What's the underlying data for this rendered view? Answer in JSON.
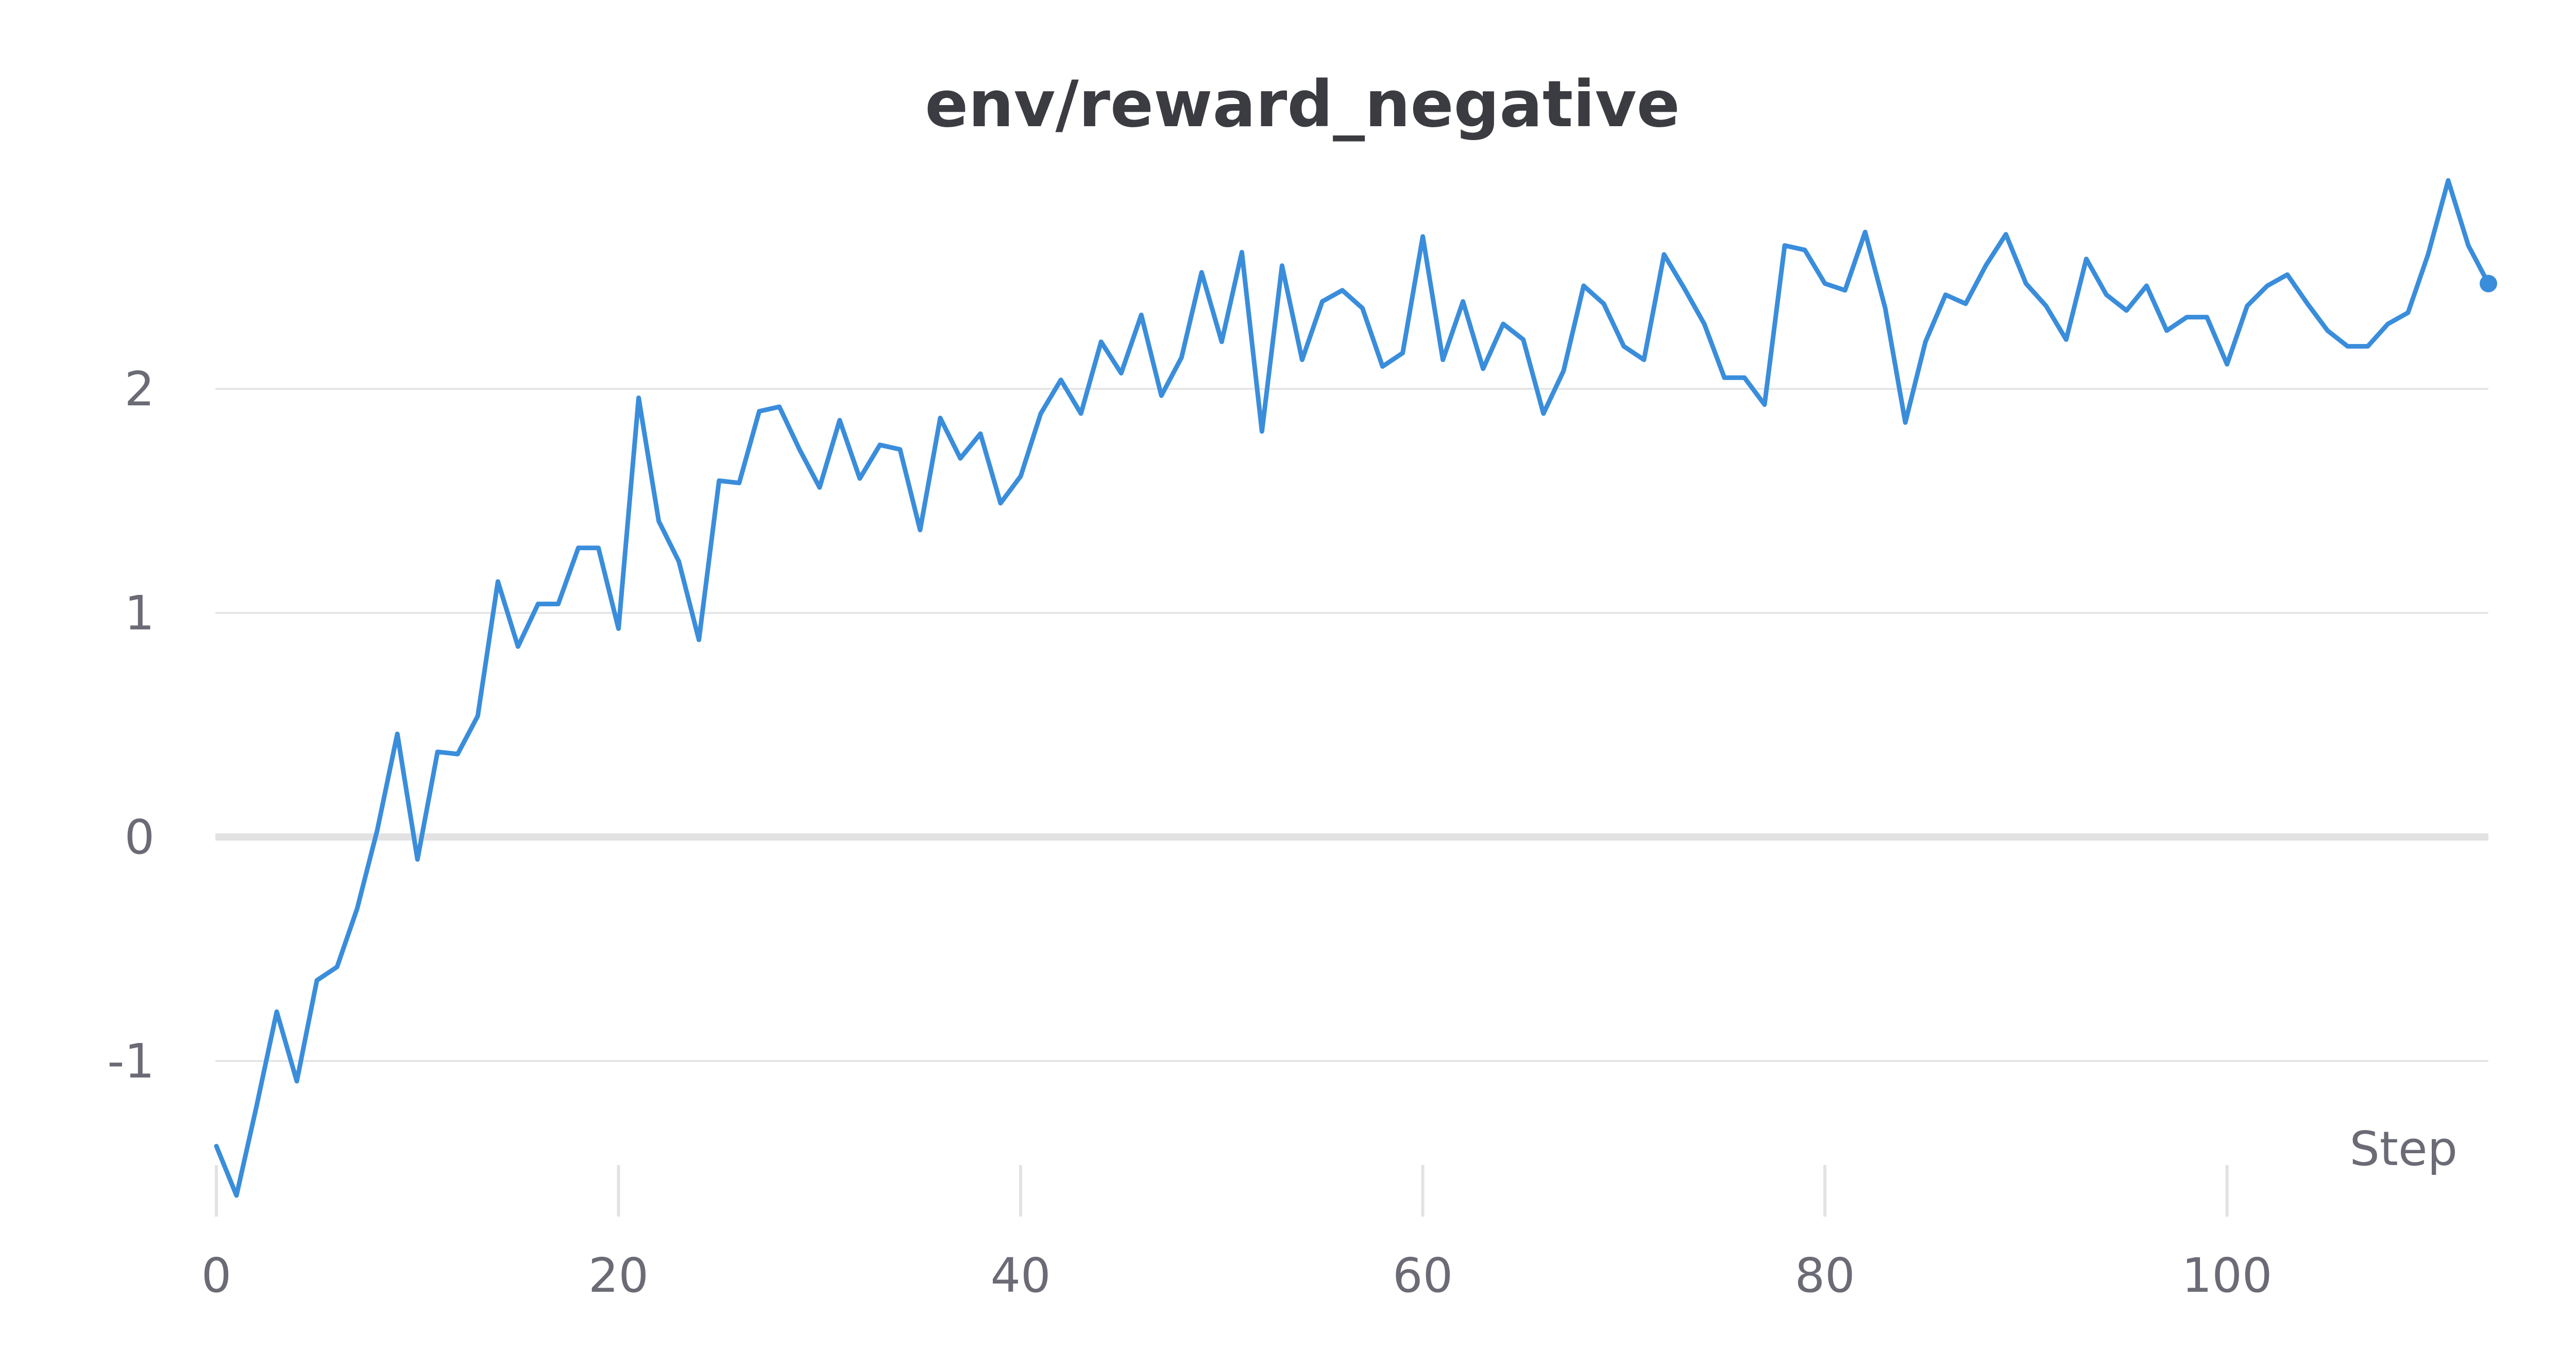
{
  "colors": {
    "series": "#3a8ddb",
    "title": "#3b3b42",
    "ticks": "#6b6b76",
    "grid": "#e6e6e6"
  },
  "chart_data": {
    "type": "line",
    "title": "env/reward_negative",
    "xlabel": "Step",
    "ylabel": "",
    "xlim": [
      0,
      113
    ],
    "ylim": [
      -1.7,
      2.9
    ],
    "grid": true,
    "legend": "none",
    "x_ticks": [
      {
        "value": 0,
        "label": "0"
      },
      {
        "value": 20,
        "label": "20"
      },
      {
        "value": 40,
        "label": "40"
      },
      {
        "value": 60,
        "label": "60"
      },
      {
        "value": 80,
        "label": "80"
      },
      {
        "value": 100,
        "label": "100"
      }
    ],
    "y_ticks": [
      {
        "value": -1,
        "label": "-1"
      },
      {
        "value": 0,
        "label": "0"
      },
      {
        "value": 1,
        "label": "1"
      },
      {
        "value": 2,
        "label": "2"
      }
    ],
    "series": [
      {
        "color": "#3a8ddb",
        "end_marker": true,
        "x": [
          0,
          1,
          2,
          3,
          4,
          5,
          6,
          7,
          8,
          9,
          10,
          11,
          12,
          13,
          14,
          15,
          16,
          17,
          18,
          19,
          20,
          21,
          22,
          23,
          24,
          25,
          26,
          27,
          28,
          29,
          30,
          31,
          32,
          33,
          34,
          35,
          36,
          37,
          38,
          39,
          40,
          41,
          42,
          43,
          44,
          45,
          46,
          47,
          48,
          49,
          50,
          51,
          52,
          53,
          54,
          55,
          56,
          57,
          58,
          59,
          60,
          61,
          62,
          63,
          64,
          65,
          66,
          67,
          68,
          69,
          70,
          71,
          72,
          73,
          74,
          75,
          76,
          77,
          78,
          79,
          80,
          81,
          82,
          83,
          84,
          85,
          86,
          87,
          88,
          89,
          90,
          91,
          92,
          93,
          94,
          95,
          96,
          97,
          98,
          99,
          100,
          101,
          102,
          103,
          104,
          105,
          106,
          107,
          108,
          109,
          110,
          111,
          112,
          113
        ],
        "y": [
          -1.38,
          -1.6,
          -1.2,
          -0.78,
          -1.09,
          -0.64,
          -0.58,
          -0.32,
          0.03,
          0.46,
          -0.1,
          0.38,
          0.37,
          0.54,
          1.14,
          0.85,
          1.04,
          1.04,
          1.29,
          1.29,
          0.93,
          1.96,
          1.41,
          1.23,
          0.88,
          1.59,
          1.58,
          1.9,
          1.92,
          1.73,
          1.56,
          1.86,
          1.6,
          1.75,
          1.73,
          1.37,
          1.87,
          1.69,
          1.8,
          1.49,
          1.61,
          1.89,
          2.04,
          1.89,
          2.21,
          2.07,
          2.33,
          1.97,
          2.14,
          2.52,
          2.21,
          2.61,
          1.81,
          2.55,
          2.13,
          2.39,
          2.44,
          2.36,
          2.1,
          2.16,
          2.68,
          2.13,
          2.39,
          2.09,
          2.29,
          2.22,
          1.89,
          2.08,
          2.46,
          2.38,
          2.19,
          2.13,
          2.6,
          2.45,
          2.29,
          2.05,
          2.05,
          1.93,
          2.64,
          2.62,
          2.47,
          2.44,
          2.7,
          2.36,
          1.85,
          2.21,
          2.42,
          2.38,
          2.55,
          2.69,
          2.47,
          2.37,
          2.22,
          2.58,
          2.42,
          2.35,
          2.46,
          2.26,
          2.32,
          2.32,
          2.11,
          2.37,
          2.46,
          2.51,
          2.38,
          2.26,
          2.19,
          2.19,
          2.29,
          2.34,
          2.6,
          2.93,
          2.64,
          2.47
        ]
      }
    ]
  }
}
